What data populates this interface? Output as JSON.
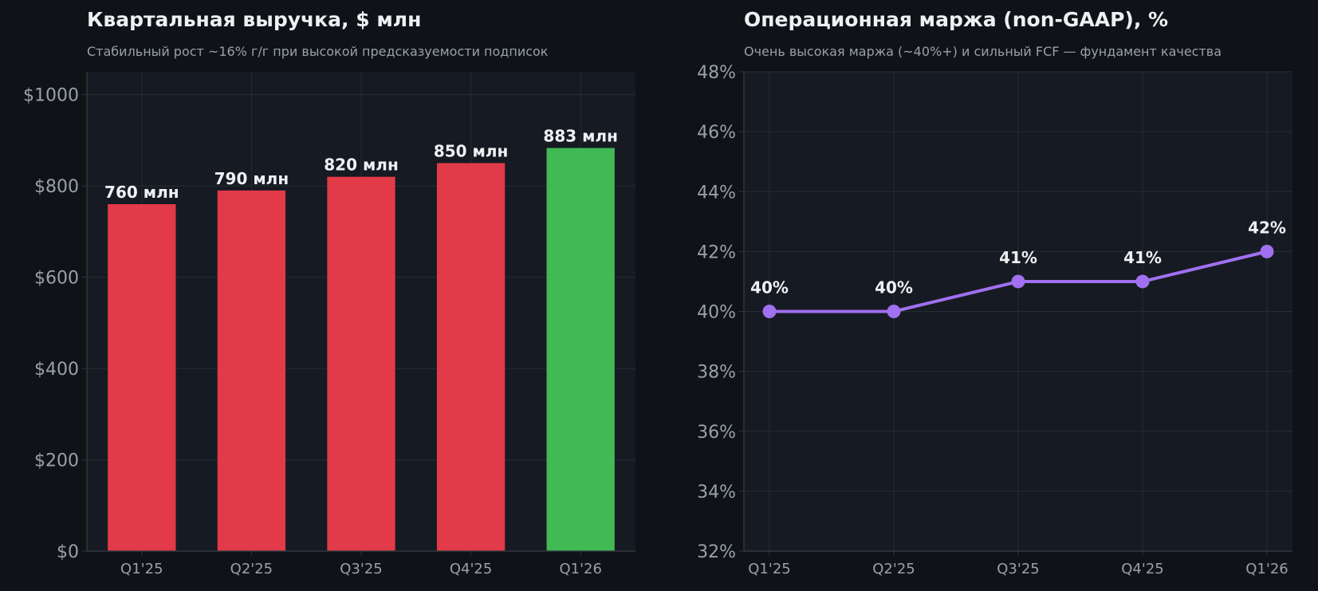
{
  "chart_data": [
    {
      "type": "bar",
      "title": "Квартальная выручка, $ млн",
      "subtitle": "Стабильный рост ~16% г/г при высокой предсказуемости подписок",
      "categories": [
        "Q1'25",
        "Q2'25",
        "Q3'25",
        "Q4'25",
        "Q1'26"
      ],
      "values": [
        760,
        790,
        820,
        850,
        883
      ],
      "data_labels": [
        "760 млн",
        "790 млн",
        "820 млн",
        "850 млн",
        "883 млн"
      ],
      "bar_colors": [
        "#e23a48",
        "#e23a48",
        "#e23a48",
        "#e23a48",
        "#41ba55"
      ],
      "ylim": [
        0,
        1050
      ],
      "yticks": [
        0,
        200,
        400,
        600,
        800,
        1000
      ],
      "ytick_labels": [
        "$0",
        "$200",
        "$400",
        "$600",
        "$800",
        "$1000"
      ],
      "xlabel": "",
      "ylabel": "",
      "grid": true
    },
    {
      "type": "line",
      "title": "Операционная маржа (non-GAAP), %",
      "subtitle": "Очень высокая маржа (~40%+) и сильный FCF — фундамент качества",
      "categories": [
        "Q1'25",
        "Q2'25",
        "Q3'25",
        "Q4'25",
        "Q1'26"
      ],
      "values": [
        40,
        40,
        41,
        41,
        42
      ],
      "data_labels": [
        "40%",
        "40%",
        "41%",
        "41%",
        "42%"
      ],
      "line_color": "#a070f0",
      "ylim": [
        32,
        48
      ],
      "yticks": [
        32,
        34,
        36,
        38,
        40,
        42,
        44,
        46,
        48
      ],
      "ytick_labels": [
        "32%",
        "34%",
        "36%",
        "38%",
        "40%",
        "42%",
        "44%",
        "46%",
        "48%"
      ],
      "xlabel": "",
      "ylabel": "",
      "grid": true
    }
  ]
}
